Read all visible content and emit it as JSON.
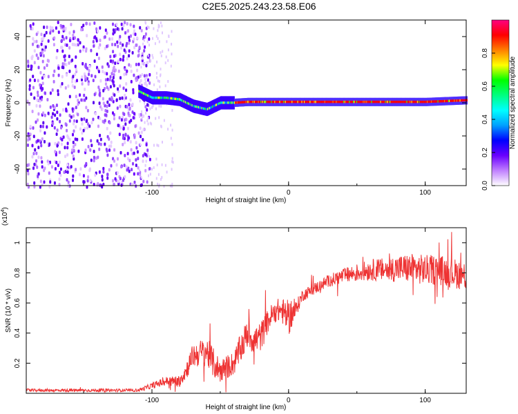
{
  "title": "C2E5.2025.243.23.58.E06",
  "chart_data": [
    {
      "type": "heatmap",
      "xlabel": "Height of straight line (km)",
      "ylabel": "Frequency (Hz)",
      "xlim": [
        -192,
        130
      ],
      "ylim": [
        -50,
        50
      ],
      "xticks": [
        -100,
        0,
        100
      ],
      "yticks": [
        -40,
        -20,
        0,
        20,
        40
      ],
      "colorbar": {
        "label": "Normalized spectral amplitude",
        "range": [
          0,
          1
        ],
        "ticks": [
          0.0,
          0.2,
          0.4,
          0.6,
          0.8
        ],
        "colors": [
          "#ffffff",
          "#c080ff",
          "#6a00ff",
          "#0000ff",
          "#00a0ff",
          "#00ffff",
          "#00ff80",
          "#00ff00",
          "#ffff00",
          "#ff8000",
          "#ff0000",
          "#ff0080"
        ]
      },
      "ridge": {
        "x": [
          -110,
          -100,
          -90,
          -80,
          -70,
          -60,
          -50,
          -40,
          -30,
          -20,
          0,
          20,
          60,
          100,
          130
        ],
        "freq": [
          7,
          3,
          3,
          2,
          -2,
          -4,
          0,
          0,
          0.5,
          0.5,
          0.5,
          0.5,
          0.5,
          0.5,
          1.5
        ]
      }
    },
    {
      "type": "line",
      "xlabel": "Height of straight line (km)",
      "ylabel": "SNR (10 * v/v)",
      "yscale_label": "(x10",
      "yscale_exp": "4",
      "xlim": [
        -192,
        130
      ],
      "ylim": [
        0,
        1.1
      ],
      "xticks": [
        -100,
        0,
        100
      ],
      "yticks": [
        0.2,
        0.4,
        0.6,
        0.8,
        1
      ],
      "series": [
        {
          "name": "SNR",
          "color": "#ee3333",
          "x": [
            -192,
            -150,
            -110,
            -100,
            -90,
            -80,
            -75,
            -70,
            -60,
            -55,
            -50,
            -40,
            -35,
            -30,
            -25,
            -20,
            -15,
            -10,
            -5,
            0,
            5,
            10,
            20,
            30,
            40,
            50,
            60,
            70,
            80,
            90,
            100,
            110,
            120,
            130
          ],
          "y": [
            0.02,
            0.02,
            0.02,
            0.05,
            0.08,
            0.08,
            0.15,
            0.25,
            0.28,
            0.2,
            0.15,
            0.2,
            0.3,
            0.4,
            0.35,
            0.38,
            0.48,
            0.55,
            0.55,
            0.5,
            0.55,
            0.65,
            0.7,
            0.75,
            0.78,
            0.8,
            0.82,
            0.82,
            0.83,
            0.83,
            0.82,
            0.82,
            0.8,
            0.78
          ],
          "noise": [
            0.01,
            0.01,
            0.01,
            0.02,
            0.03,
            0.04,
            0.06,
            0.08,
            0.1,
            0.1,
            0.08,
            0.08,
            0.1,
            0.1,
            0.1,
            0.1,
            0.08,
            0.08,
            0.08,
            0.12,
            0.06,
            0.04,
            0.04,
            0.04,
            0.05,
            0.06,
            0.07,
            0.08,
            0.09,
            0.1,
            0.1,
            0.1,
            0.1,
            0.1
          ]
        }
      ]
    }
  ]
}
